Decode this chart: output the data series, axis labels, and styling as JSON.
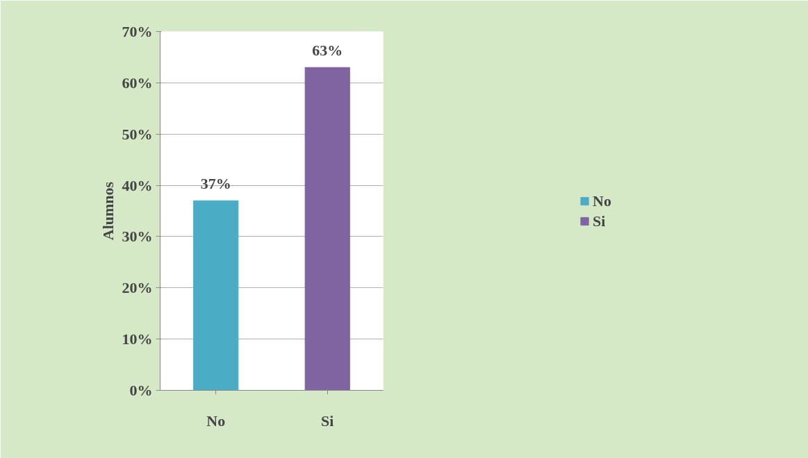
{
  "chart_data": {
    "type": "bar",
    "ylabel": "Alumnos",
    "categories": [
      "No",
      "Si"
    ],
    "series": [
      {
        "name": "No",
        "color": "#4bacc6",
        "values": [
          37,
          null
        ],
        "value_labels": [
          "37%",
          null
        ]
      },
      {
        "name": "Si",
        "color": "#8064a2",
        "values": [
          null,
          63
        ],
        "value_labels": [
          null,
          "63%"
        ]
      }
    ],
    "ylim": [
      0,
      70
    ],
    "yticks": [
      {
        "value": 0,
        "label": "0%"
      },
      {
        "value": 10,
        "label": "10%"
      },
      {
        "value": 20,
        "label": "20%"
      },
      {
        "value": 30,
        "label": "30%"
      },
      {
        "value": 40,
        "label": "40%"
      },
      {
        "value": 50,
        "label": "50%"
      },
      {
        "value": 60,
        "label": "60%"
      },
      {
        "value": 70,
        "label": "70%"
      }
    ],
    "grid": "y",
    "legend": "right"
  }
}
